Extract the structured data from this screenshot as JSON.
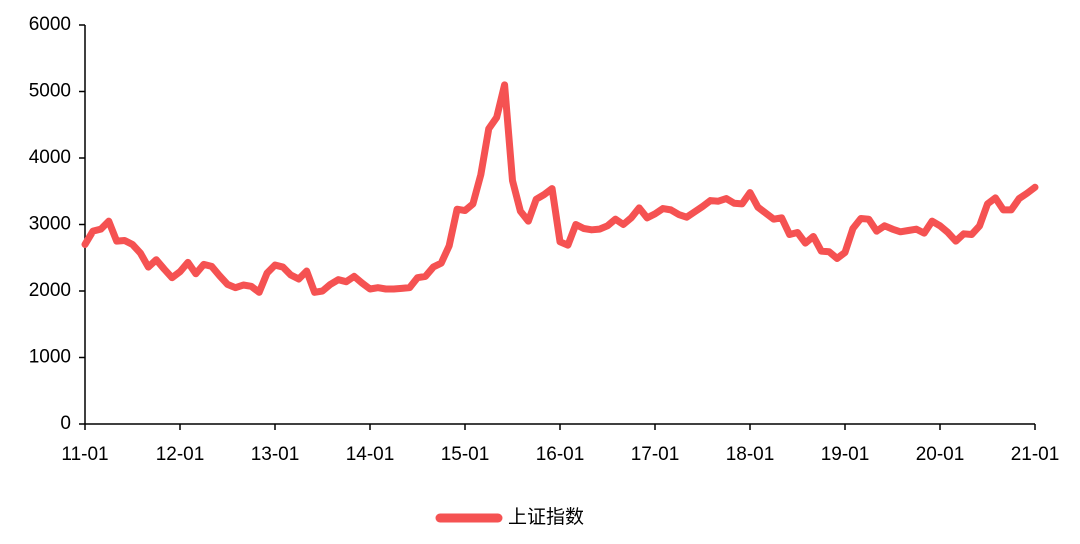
{
  "chart_data": {
    "type": "line",
    "x": [
      "11-01",
      null,
      null,
      null,
      null,
      null,
      null,
      null,
      null,
      null,
      null,
      null,
      "12-01",
      null,
      null,
      null,
      null,
      null,
      null,
      null,
      null,
      null,
      null,
      null,
      "13-01",
      null,
      null,
      null,
      null,
      null,
      null,
      null,
      null,
      null,
      null,
      null,
      "14-01",
      null,
      null,
      null,
      null,
      null,
      null,
      null,
      null,
      null,
      null,
      null,
      "15-01",
      null,
      null,
      null,
      null,
      null,
      null,
      null,
      null,
      null,
      null,
      null,
      "16-01",
      null,
      null,
      null,
      null,
      null,
      null,
      null,
      null,
      null,
      null,
      null,
      "17-01",
      null,
      null,
      null,
      null,
      null,
      null,
      null,
      null,
      null,
      null,
      null,
      "18-01",
      null,
      null,
      null,
      null,
      null,
      null,
      null,
      null,
      null,
      null,
      null,
      "19-01",
      null,
      null,
      null,
      null,
      null,
      null,
      null,
      null,
      null,
      null,
      null,
      "20-01",
      null,
      null,
      null,
      null,
      null,
      null,
      null,
      null,
      null,
      null,
      null,
      "21-01"
    ],
    "series": [
      {
        "name": "上证指数",
        "color": "#f55252",
        "values": [
          2700,
          2900,
          2930,
          3050,
          2750,
          2760,
          2700,
          2570,
          2360,
          2470,
          2330,
          2200,
          2290,
          2430,
          2260,
          2400,
          2370,
          2230,
          2100,
          2050,
          2090,
          2070,
          1980,
          2270,
          2390,
          2360,
          2240,
          2180,
          2300,
          1980,
          2000,
          2100,
          2170,
          2140,
          2220,
          2120,
          2030,
          2050,
          2030,
          2030,
          2040,
          2050,
          2200,
          2220,
          2360,
          2420,
          2680,
          3230,
          3210,
          3310,
          3750,
          4440,
          4610,
          5100,
          3660,
          3200,
          3050,
          3380,
          3450,
          3540,
          2740,
          2690,
          3000,
          2940,
          2920,
          2930,
          2980,
          3080,
          3000,
          3100,
          3250,
          3100,
          3160,
          3240,
          3220,
          3150,
          3110,
          3190,
          3270,
          3360,
          3350,
          3390,
          3320,
          3310,
          3480,
          3260,
          3170,
          3080,
          3100,
          2850,
          2880,
          2720,
          2820,
          2600,
          2590,
          2490,
          2580,
          2940,
          3090,
          3080,
          2900,
          2980,
          2930,
          2890,
          2910,
          2930,
          2870,
          3050,
          2980,
          2880,
          2750,
          2860,
          2850,
          2980,
          3310,
          3400,
          3220,
          3220,
          3390,
          3470,
          3560
        ]
      }
    ],
    "ylim": [
      0,
      6000
    ],
    "yticks": [
      0,
      1000,
      2000,
      3000,
      4000,
      5000,
      6000
    ],
    "legend": "bottom"
  }
}
